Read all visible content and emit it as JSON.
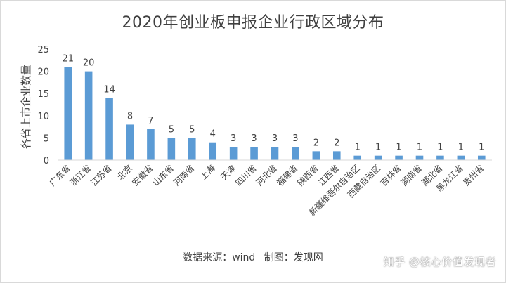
{
  "chart_data": {
    "type": "bar",
    "title": "2020年创业板申报企业行政区域分布",
    "xlabel": "",
    "ylabel": "各省上市企业数量",
    "ylim": [
      0,
      25
    ],
    "yticks": [
      0,
      5,
      10,
      15,
      20,
      25
    ],
    "grid": false,
    "bar_color": "#5b9bd5",
    "categories": [
      "广东省",
      "浙江省",
      "江苏省",
      "北京",
      "安徽省",
      "山东省",
      "河南省",
      "上海",
      "天津",
      "四川省",
      "河北省",
      "福建省",
      "陕西省",
      "江西省",
      "新疆维吾尔自治区",
      "西藏自治区",
      "吉林省",
      "湖南省",
      "湖北省",
      "黑龙江省",
      "贵州省"
    ],
    "values": [
      21,
      20,
      14,
      8,
      7,
      5,
      5,
      4,
      3,
      3,
      3,
      3,
      2,
      2,
      1,
      1,
      1,
      1,
      1,
      1,
      1
    ]
  },
  "footer": {
    "source": "数据来源：wind",
    "made_by": "制图：发现网"
  },
  "watermark": "知乎 @核心价值发现者"
}
